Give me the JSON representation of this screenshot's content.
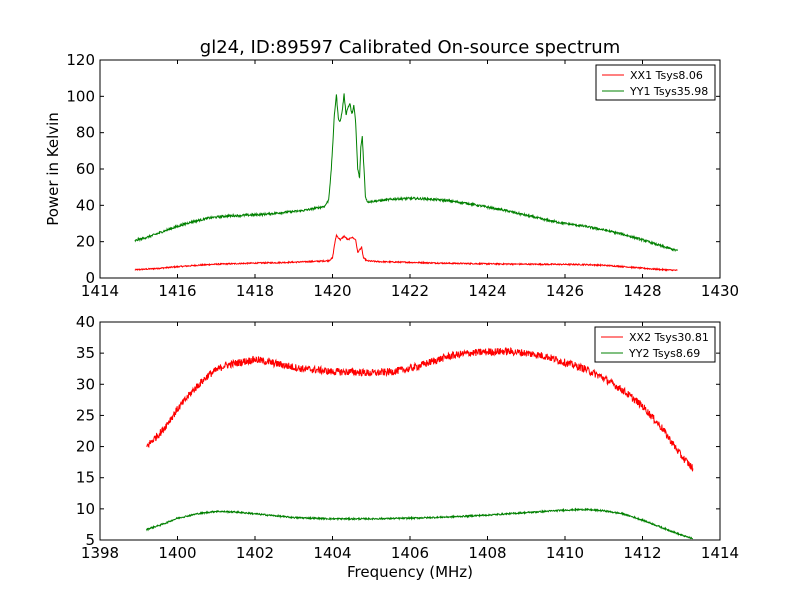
{
  "chart_data": {
    "title": "gl24, ID:89597 Calibrated On-source spectrum",
    "ylabel": "Power in Kelvin",
    "xlabel": "Frequency (MHz)",
    "panels": [
      {
        "type": "line",
        "xlim": [
          1414,
          1430
        ],
        "ylim": [
          0,
          120
        ],
        "xticks": [
          1414,
          1416,
          1418,
          1420,
          1422,
          1424,
          1426,
          1428,
          1430
        ],
        "yticks": [
          0,
          20,
          40,
          60,
          80,
          100,
          120
        ],
        "xtick_labels": [
          "1414",
          "1416",
          "1418",
          "1420",
          "1422",
          "1424",
          "1426",
          "1428",
          "1430"
        ],
        "ytick_labels": [
          "0",
          "20",
          "40",
          "60",
          "80",
          "100",
          "120"
        ],
        "legend": "top-right",
        "series": [
          {
            "name": "XX1 Tsys8.06",
            "color": "#ff0000",
            "noise": 0.35,
            "points": [
              [
                1414.9,
                4.5
              ],
              [
                1415.5,
                5.3
              ],
              [
                1416,
                6.2
              ],
              [
                1416.5,
                7.0
              ],
              [
                1417,
                7.6
              ],
              [
                1417.5,
                7.9
              ],
              [
                1418,
                8.2
              ],
              [
                1418.5,
                8.4
              ],
              [
                1419,
                8.7
              ],
              [
                1419.5,
                9.1
              ],
              [
                1419.9,
                9.5
              ],
              [
                1420.0,
                11
              ],
              [
                1420.05,
                18
              ],
              [
                1420.1,
                23.5
              ],
              [
                1420.2,
                21
              ],
              [
                1420.3,
                23
              ],
              [
                1420.4,
                21
              ],
              [
                1420.5,
                22.5
              ],
              [
                1420.6,
                21
              ],
              [
                1420.65,
                14
              ],
              [
                1420.75,
                17
              ],
              [
                1420.8,
                11
              ],
              [
                1420.9,
                9.4
              ],
              [
                1421.2,
                9.0
              ],
              [
                1422,
                8.6
              ],
              [
                1423,
                8.1
              ],
              [
                1424,
                7.8
              ],
              [
                1425,
                7.6
              ],
              [
                1426,
                7.5
              ],
              [
                1426.5,
                7.4
              ],
              [
                1427,
                7.0
              ],
              [
                1427.5,
                6.3
              ],
              [
                1428,
                5.4
              ],
              [
                1428.5,
                4.6
              ],
              [
                1428.9,
                4.2
              ]
            ]
          },
          {
            "name": "YY1 Tsys35.98",
            "color": "#008000",
            "noise": 0.6,
            "points": [
              [
                1414.9,
                20.5
              ],
              [
                1415.3,
                23
              ],
              [
                1415.8,
                27
              ],
              [
                1416.3,
                30.5
              ],
              [
                1416.8,
                33
              ],
              [
                1417.2,
                34
              ],
              [
                1417.7,
                34.5
              ],
              [
                1418.2,
                35
              ],
              [
                1418.7,
                36
              ],
              [
                1419.2,
                37
              ],
              [
                1419.6,
                38.5
              ],
              [
                1419.8,
                39.5
              ],
              [
                1419.9,
                43
              ],
              [
                1419.97,
                60
              ],
              [
                1420.05,
                90
              ],
              [
                1420.1,
                101
              ],
              [
                1420.15,
                88
              ],
              [
                1420.2,
                86
              ],
              [
                1420.25,
                92
              ],
              [
                1420.3,
                101
              ],
              [
                1420.35,
                90
              ],
              [
                1420.4,
                94
              ],
              [
                1420.45,
                96
              ],
              [
                1420.5,
                90
              ],
              [
                1420.55,
                95
              ],
              [
                1420.6,
                85
              ],
              [
                1420.65,
                60
              ],
              [
                1420.7,
                55
              ],
              [
                1420.73,
                72
              ],
              [
                1420.77,
                78
              ],
              [
                1420.8,
                65
              ],
              [
                1420.85,
                45
              ],
              [
                1420.9,
                42
              ],
              [
                1421.2,
                42.5
              ],
              [
                1421.6,
                43.5
              ],
              [
                1422,
                43.8
              ],
              [
                1422.5,
                43.5
              ],
              [
                1423,
                42.5
              ],
              [
                1423.5,
                41
              ],
              [
                1424,
                39
              ],
              [
                1424.5,
                37
              ],
              [
                1425,
                34.5
              ],
              [
                1425.5,
                32
              ],
              [
                1426,
                30
              ],
              [
                1426.5,
                28.5
              ],
              [
                1427,
                26.5
              ],
              [
                1427.5,
                24
              ],
              [
                1428,
                21
              ],
              [
                1428.5,
                17.5
              ],
              [
                1428.9,
                15
              ]
            ]
          }
        ]
      },
      {
        "type": "line",
        "xlim": [
          1398,
          1414
        ],
        "ylim": [
          5,
          40
        ],
        "xticks": [
          1398,
          1400,
          1402,
          1404,
          1406,
          1408,
          1410,
          1412,
          1414
        ],
        "yticks": [
          5,
          10,
          15,
          20,
          25,
          30,
          35,
          40
        ],
        "xtick_labels": [
          "1398",
          "1400",
          "1402",
          "1404",
          "1406",
          "1408",
          "1410",
          "1412",
          "1414"
        ],
        "ytick_labels": [
          "5",
          "10",
          "15",
          "20",
          "25",
          "30",
          "35",
          "40"
        ],
        "legend": "top-right",
        "series": [
          {
            "name": "XX2 Tsys30.81",
            "color": "#ff0000",
            "noise": 0.6,
            "points": [
              [
                1399.2,
                20
              ],
              [
                1399.6,
                22.5
              ],
              [
                1400,
                26
              ],
              [
                1400.4,
                29
              ],
              [
                1400.8,
                31.5
              ],
              [
                1401.2,
                33
              ],
              [
                1401.6,
                33.5
              ],
              [
                1402,
                34
              ],
              [
                1402.4,
                33.5
              ],
              [
                1402.8,
                33
              ],
              [
                1403.2,
                32.5
              ],
              [
                1403.6,
                32.3
              ],
              [
                1404,
                32
              ],
              [
                1404.5,
                32
              ],
              [
                1405,
                31.8
              ],
              [
                1405.5,
                32
              ],
              [
                1406,
                32.5
              ],
              [
                1406.5,
                33.5
              ],
              [
                1407,
                34.5
              ],
              [
                1407.5,
                35
              ],
              [
                1408,
                35.2
              ],
              [
                1408.5,
                35.3
              ],
              [
                1409,
                35
              ],
              [
                1409.5,
                34.5
              ],
              [
                1410,
                33.5
              ],
              [
                1410.5,
                32.5
              ],
              [
                1411,
                31
              ],
              [
                1411.5,
                29
              ],
              [
                1412,
                26.5
              ],
              [
                1412.5,
                23
              ],
              [
                1413,
                18.5
              ],
              [
                1413.3,
                16.5
              ]
            ]
          },
          {
            "name": "YY2 Tsys8.69",
            "color": "#008000",
            "noise": 0.12,
            "points": [
              [
                1399.2,
                6.7
              ],
              [
                1399.6,
                7.5
              ],
              [
                1400,
                8.5
              ],
              [
                1400.5,
                9.2
              ],
              [
                1401,
                9.6
              ],
              [
                1401.5,
                9.5
              ],
              [
                1402,
                9.2
              ],
              [
                1402.5,
                8.9
              ],
              [
                1403,
                8.6
              ],
              [
                1404,
                8.4
              ],
              [
                1405,
                8.4
              ],
              [
                1406,
                8.5
              ],
              [
                1407,
                8.7
              ],
              [
                1408,
                9.0
              ],
              [
                1409,
                9.4
              ],
              [
                1410,
                9.8
              ],
              [
                1410.5,
                9.9
              ],
              [
                1411,
                9.7
              ],
              [
                1411.5,
                9.2
              ],
              [
                1412,
                8.2
              ],
              [
                1412.5,
                7.0
              ],
              [
                1413,
                5.8
              ],
              [
                1413.3,
                5.2
              ]
            ]
          }
        ]
      }
    ]
  }
}
